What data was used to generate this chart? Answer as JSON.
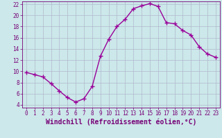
{
  "x": [
    0,
    1,
    2,
    3,
    4,
    5,
    6,
    7,
    8,
    9,
    10,
    11,
    12,
    13,
    14,
    15,
    16,
    17,
    18,
    19,
    20,
    21,
    22,
    23
  ],
  "y": [
    9.8,
    9.4,
    9.0,
    7.8,
    6.5,
    5.3,
    4.5,
    5.1,
    7.3,
    12.7,
    15.7,
    18.0,
    19.3,
    21.2,
    21.7,
    22.1,
    21.6,
    18.7,
    18.5,
    17.3,
    16.5,
    14.4,
    13.1,
    12.5
  ],
  "line_color": "#990099",
  "marker": "+",
  "markersize": 4,
  "linewidth": 1.0,
  "bg_color": "#cce8ea",
  "grid_color": "#b0b8cc",
  "xlabel": "Windchill (Refroidissement éolien,°C)",
  "xlim": [
    -0.5,
    23.5
  ],
  "ylim": [
    3.5,
    22.5
  ],
  "yticks": [
    4,
    6,
    8,
    10,
    12,
    14,
    16,
    18,
    20,
    22
  ],
  "xticks": [
    0,
    1,
    2,
    3,
    4,
    5,
    6,
    7,
    8,
    9,
    10,
    11,
    12,
    13,
    14,
    15,
    16,
    17,
    18,
    19,
    20,
    21,
    22,
    23
  ],
  "tick_fontsize": 5.5,
  "xlabel_fontsize": 7.0,
  "text_color": "#770077"
}
